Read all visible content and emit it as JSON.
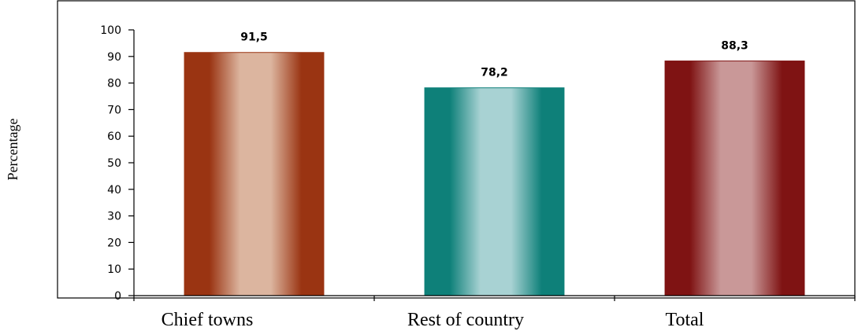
{
  "chart_data": {
    "type": "bar",
    "ylabel": "Percentage",
    "ylim": [
      0,
      100
    ],
    "yticks": [
      0,
      10,
      20,
      30,
      40,
      50,
      60,
      70,
      80,
      90,
      100
    ],
    "grid": false,
    "categories": [
      "Chief towns",
      "Rest of country",
      "Total"
    ],
    "values": [
      91.5,
      78.2,
      88.3
    ],
    "value_labels": [
      "91,5",
      "78,2",
      "88,3"
    ],
    "bar_colors": [
      "#9a3412",
      "#0e8079",
      "#7f1313"
    ],
    "bar_highlights": [
      "#dcb59f",
      "#a8d2d3",
      "#c99898"
    ]
  }
}
